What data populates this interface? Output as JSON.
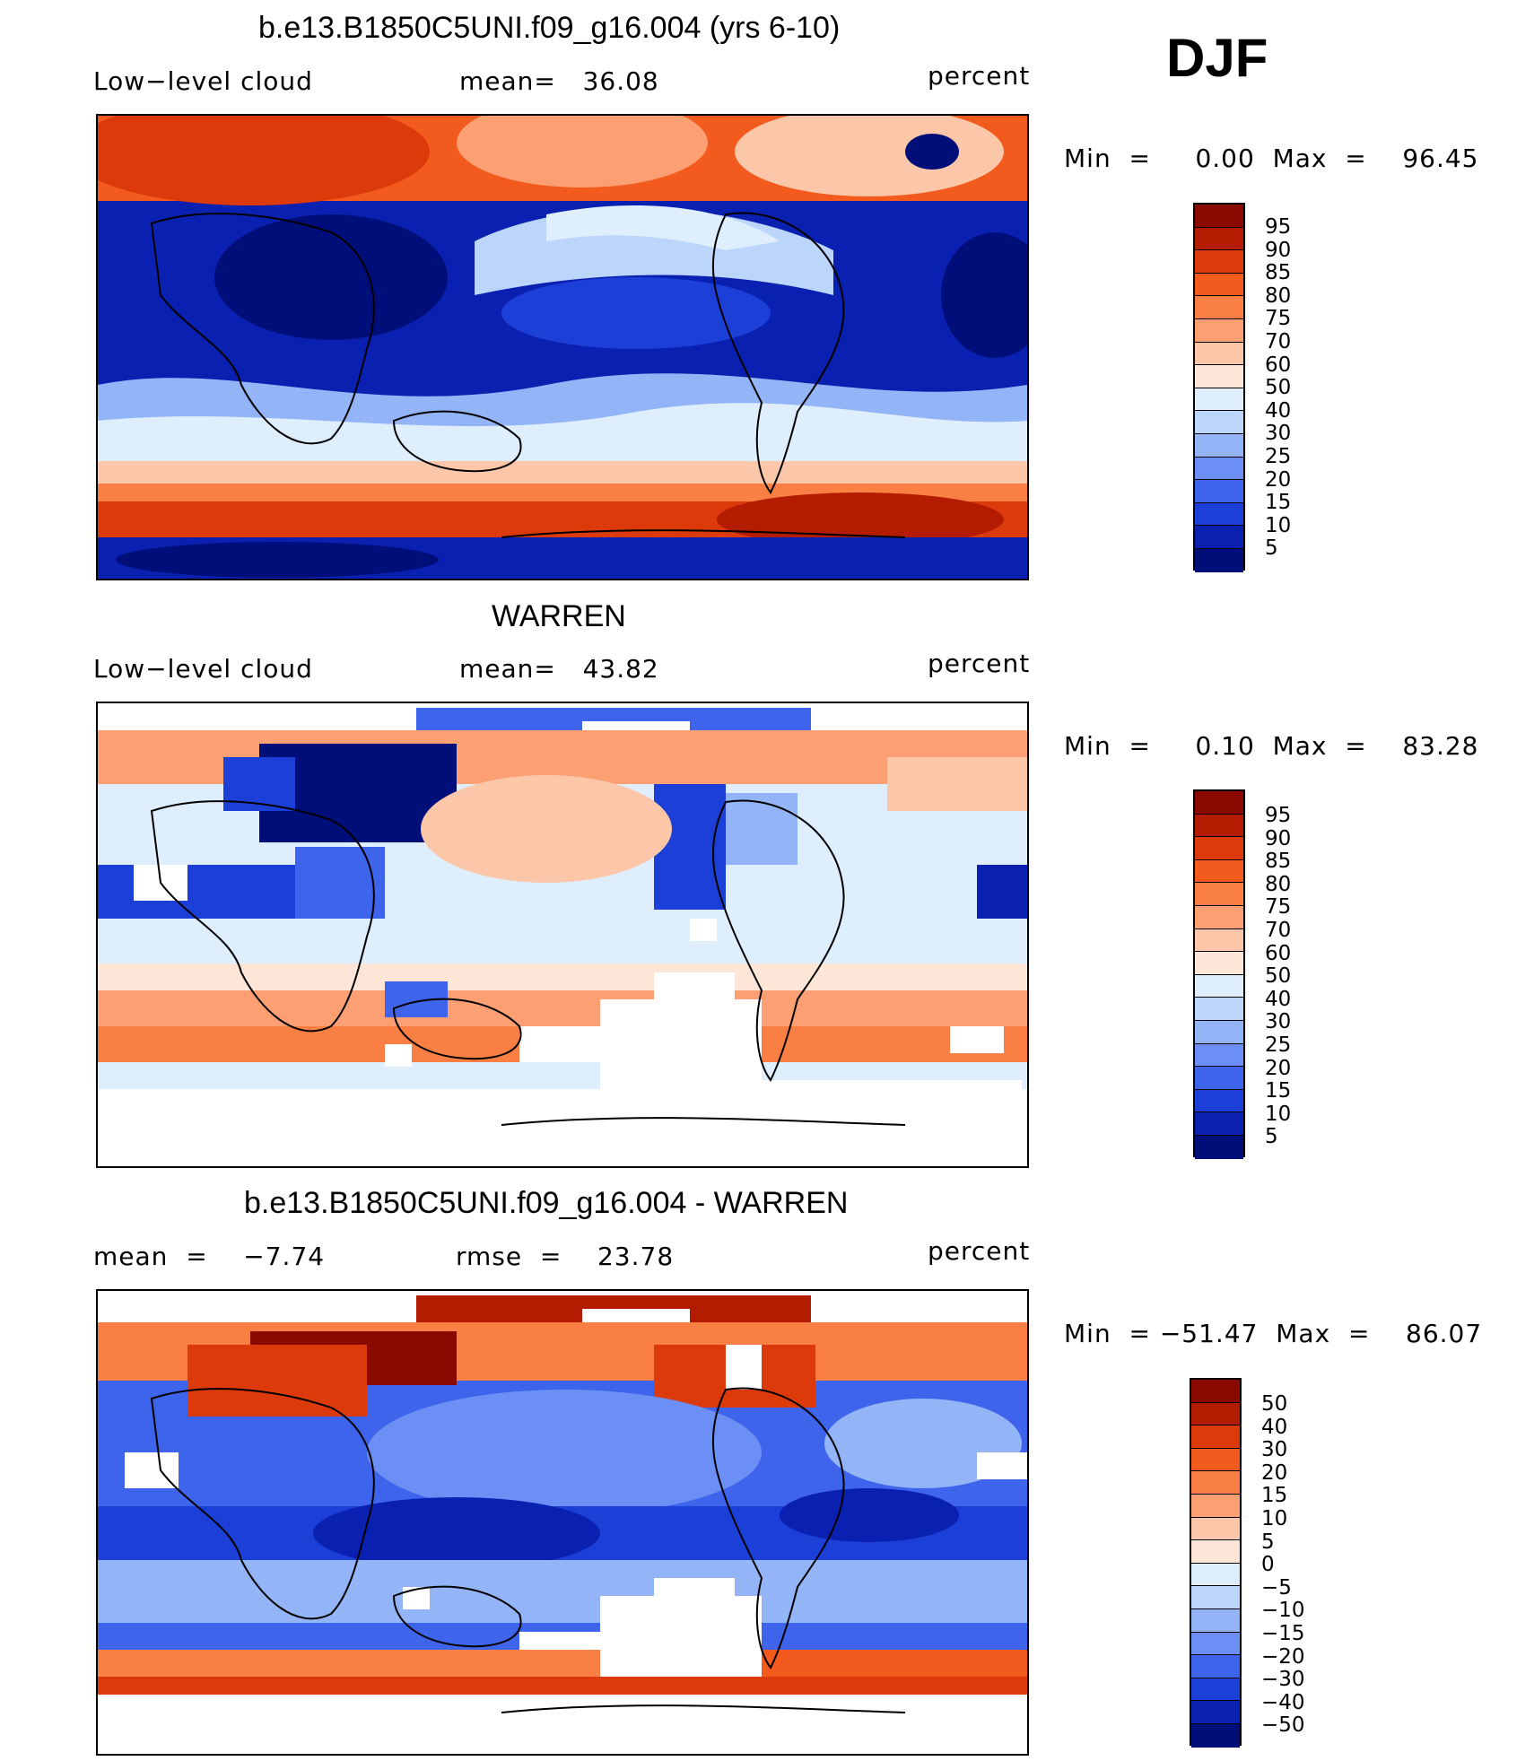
{
  "season": "DJF",
  "panels": [
    {
      "title": "b.e13.B1850C5UNI.f09_g16.004 (yrs 6-10)",
      "left_label": "Low−level cloud",
      "center_label": "mean=   36.08",
      "units": "percent",
      "minmax": "Min  =     0.00  Max  =    96.45",
      "colorbar": {
        "labels": [
          "95",
          "90",
          "85",
          "80",
          "75",
          "70",
          "60",
          "50",
          "40",
          "30",
          "25",
          "20",
          "15",
          "10",
          "5"
        ],
        "colors": [
          "#8b0a00",
          "#b31c00",
          "#dc3a0a",
          "#f25a1e",
          "#fa7f45",
          "#fca074",
          "#fbc7a8",
          "#fde6d8",
          "#dfeefc",
          "#bcd6fb",
          "#93b5f8",
          "#6b8ff4",
          "#3e64ec",
          "#1c3fd8",
          "#0a20b0",
          "#000e7a"
        ]
      },
      "chart_data": {
        "type": "heatmap",
        "description_field": "Low-level cloud",
        "mean": 36.08,
        "min": 0.0,
        "max": 96.45,
        "units": "percent",
        "levels": [
          5,
          10,
          15,
          20,
          25,
          30,
          40,
          50,
          60,
          70,
          75,
          80,
          85,
          90,
          95
        ]
      }
    },
    {
      "title": "WARREN",
      "left_label": "Low−level cloud",
      "center_label": "mean=   43.82",
      "units": "percent",
      "minmax": "Min  =     0.10  Max  =    83.28",
      "colorbar": {
        "labels": [
          "95",
          "90",
          "85",
          "80",
          "75",
          "70",
          "60",
          "50",
          "40",
          "30",
          "25",
          "20",
          "15",
          "10",
          "5"
        ],
        "colors": [
          "#8b0a00",
          "#b31c00",
          "#dc3a0a",
          "#f25a1e",
          "#fa7f45",
          "#fca074",
          "#fbc7a8",
          "#fde6d8",
          "#dfeefc",
          "#bcd6fb",
          "#93b5f8",
          "#6b8ff4",
          "#3e64ec",
          "#1c3fd8",
          "#0a20b0",
          "#000e7a"
        ]
      },
      "chart_data": {
        "type": "heatmap",
        "description_field": "Low-level cloud",
        "mean": 43.82,
        "min": 0.1,
        "max": 83.28,
        "units": "percent",
        "levels": [
          5,
          10,
          15,
          20,
          25,
          30,
          40,
          50,
          60,
          70,
          75,
          80,
          85,
          90,
          95
        ]
      }
    },
    {
      "title": "b.e13.B1850C5UNI.f09_g16.004 - WARREN",
      "left_label": "mean  =    −7.74",
      "center_label": "rmse  =    23.78",
      "units": "percent",
      "minmax": "Min  = −51.47  Max  =    86.07",
      "colorbar": {
        "labels": [
          "50",
          "40",
          "30",
          "20",
          "15",
          "10",
          "5",
          "0",
          "−5",
          "−10",
          "−15",
          "−20",
          "−30",
          "−40",
          "−50"
        ],
        "colors": [
          "#8b0a00",
          "#b31c00",
          "#dc3a0a",
          "#f25a1e",
          "#fa7f45",
          "#fca074",
          "#fbc7a8",
          "#fde6d8",
          "#dfeefc",
          "#bcd6fb",
          "#93b5f8",
          "#6b8ff4",
          "#3e64ec",
          "#1c3fd8",
          "#0a20b0",
          "#000e7a"
        ]
      },
      "chart_data": {
        "type": "heatmap",
        "description_field": "Low-level cloud difference",
        "mean": -7.74,
        "rmse": 23.78,
        "min": -51.47,
        "max": 86.07,
        "units": "percent",
        "levels": [
          -50,
          -40,
          -30,
          -20,
          -15,
          -10,
          -5,
          0,
          5,
          10,
          15,
          20,
          30,
          40,
          50
        ]
      }
    }
  ]
}
